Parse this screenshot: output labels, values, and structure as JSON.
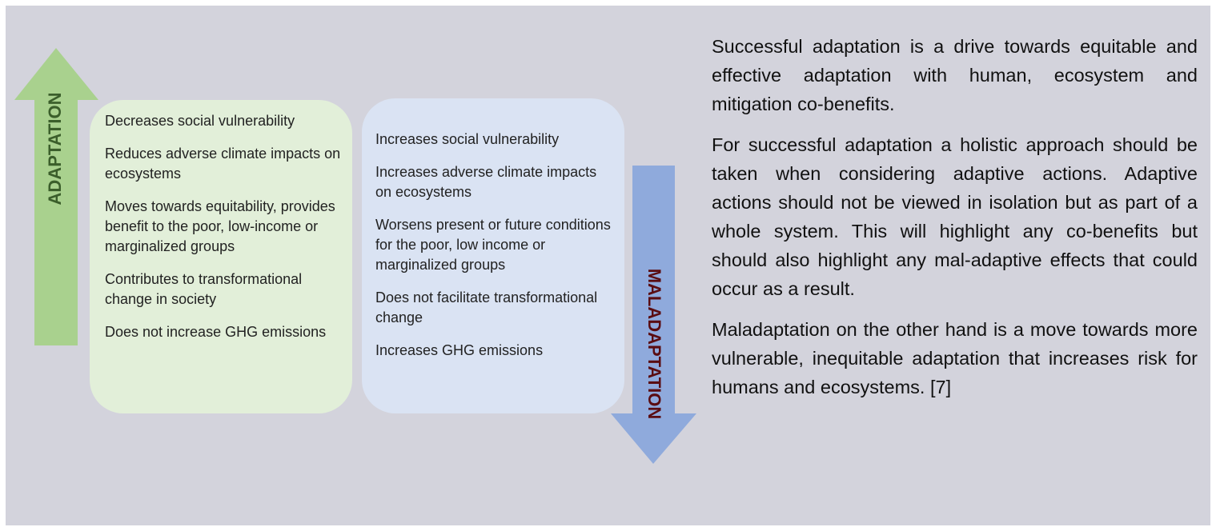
{
  "adaptation": {
    "label": "ADAPTATION",
    "items": [
      "Decreases social vulnerability",
      "Reduces adverse climate impacts on ecosystems",
      "Moves towards equitability, provides benefit to the poor, low-income or marginalized groups",
      "Contributes to transformational change in society",
      "Does not increase GHG emissions"
    ]
  },
  "maladaptation": {
    "label": "MALADAPTATION",
    "items": [
      "Increases social vulnerability",
      "Increases adverse climate impacts on ecosystems",
      "Worsens present or future conditions for the poor, low income or marginalized groups",
      "Does not facilitate transformational change",
      "Increases GHG emissions"
    ]
  },
  "paragraphs": [
    "Successful adaptation is a drive towards equitable and effective adaptation with human, ecosystem and mitigation co-benefits.",
    "For successful adaptation a holistic approach should be taken when considering adaptive actions. Adaptive actions should not be viewed in isolation but as part of a whole system. This will highlight any co-benefits but should also highlight any mal-adaptive effects that could occur as a result.",
    "Maladaptation on the other hand is a move towards more vulnerable, inequitable adaptation that increases risk for humans and ecosystems. [7]"
  ]
}
